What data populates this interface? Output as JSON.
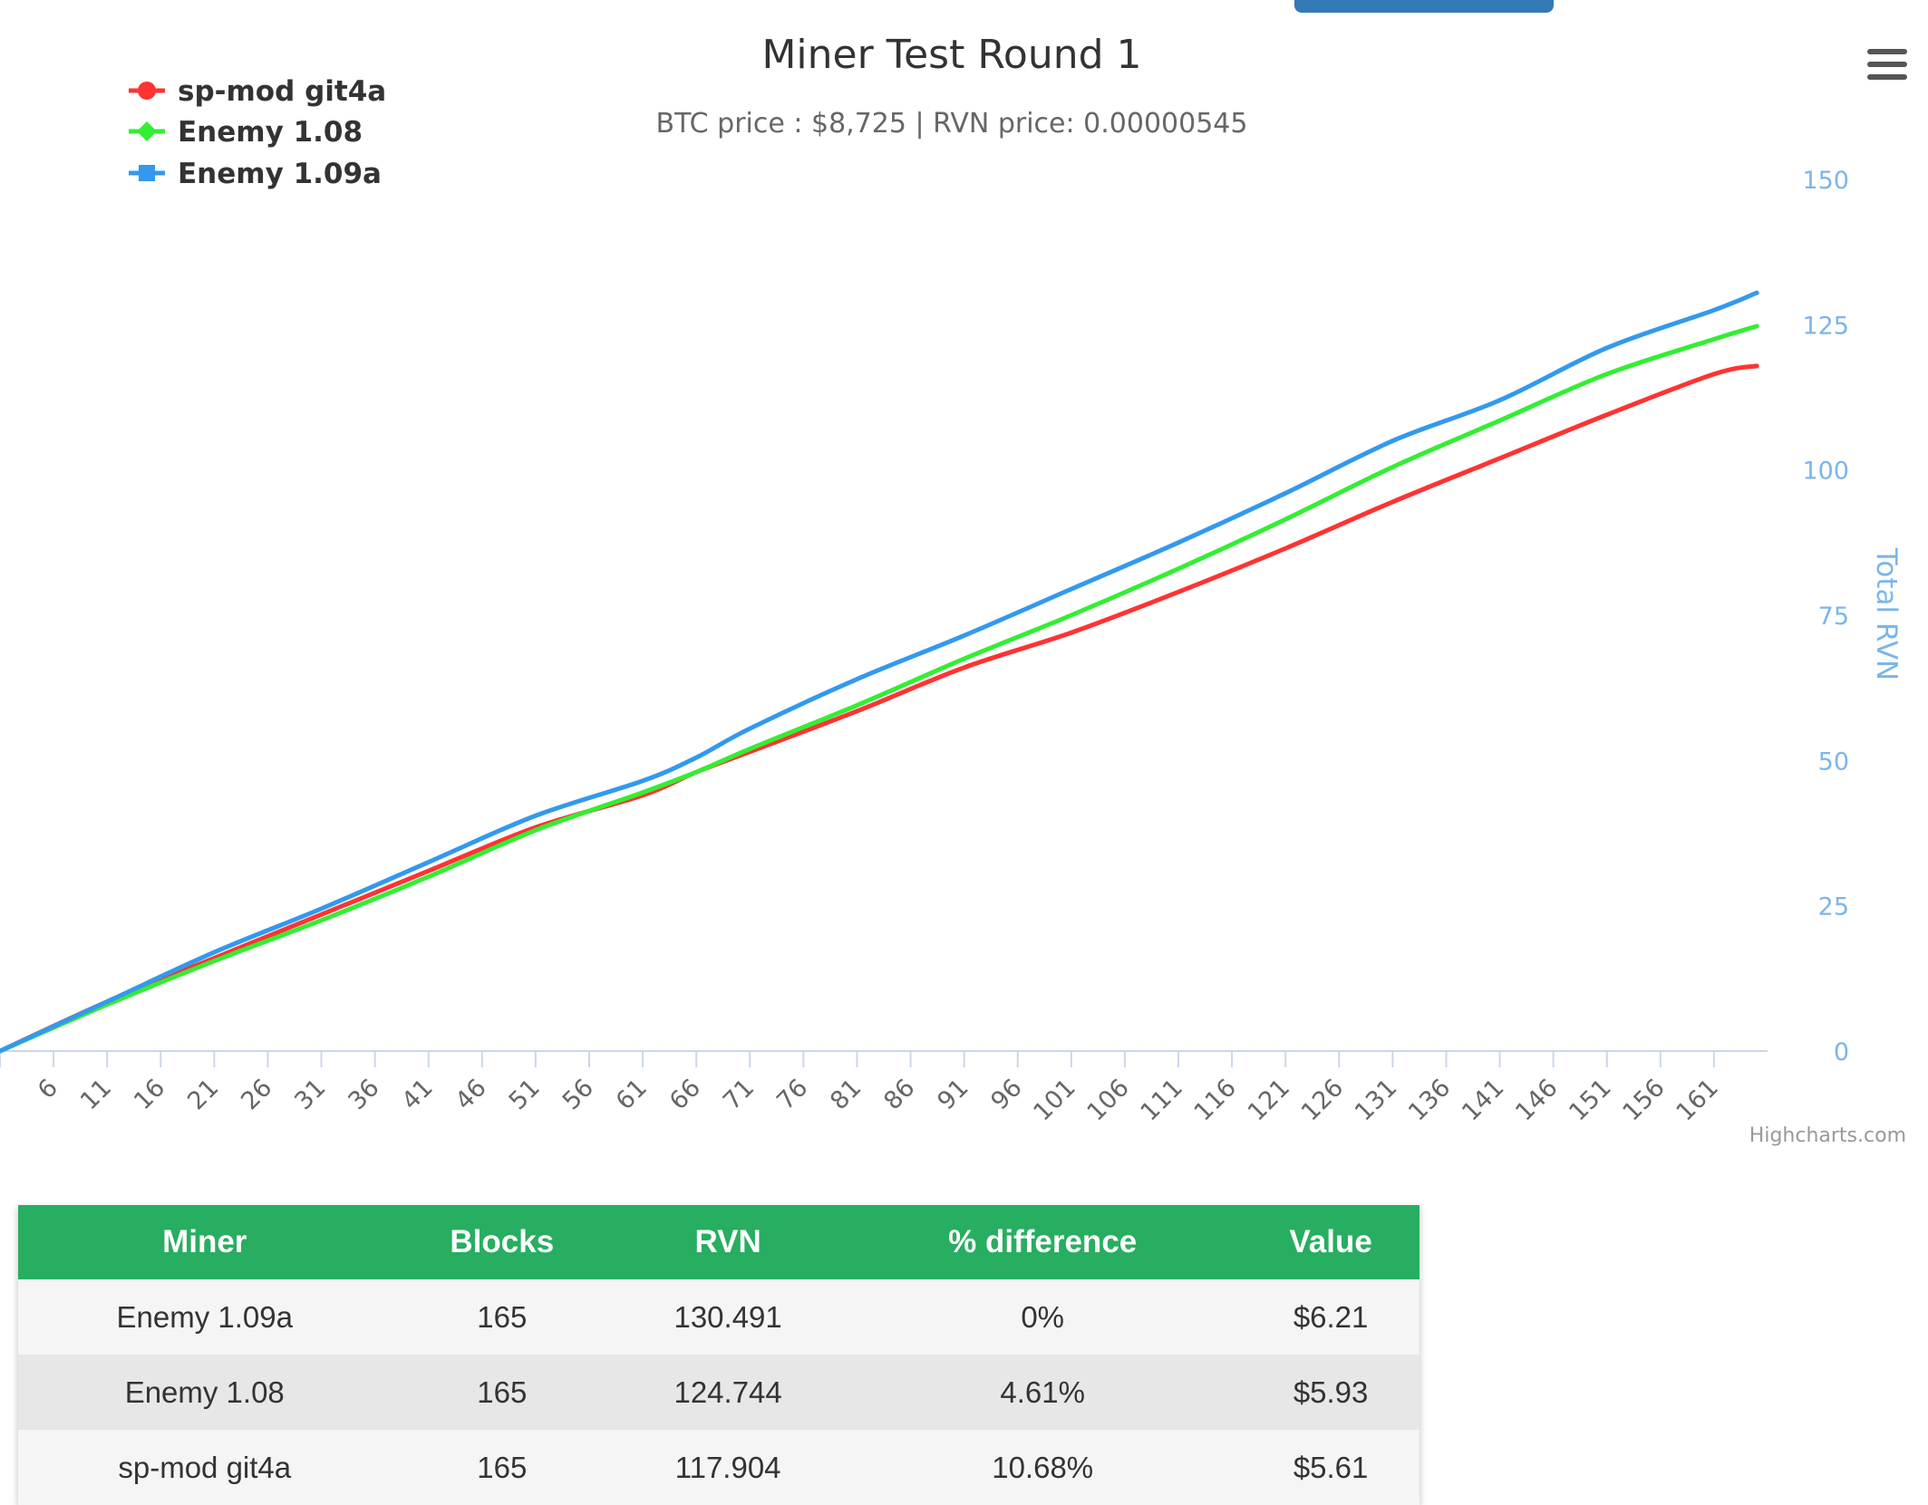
{
  "chart_data": {
    "type": "line",
    "title": "Miner Test Round 1",
    "subtitle": "BTC price : $8,725 | RVN price: 0.00000545",
    "ylabel": "Total RVN",
    "ylim": [
      0,
      150
    ],
    "yticks": [
      0,
      25,
      50,
      75,
      100,
      125,
      150
    ],
    "xlim": [
      1,
      166
    ],
    "xticks": [
      6,
      11,
      16,
      21,
      26,
      31,
      36,
      41,
      46,
      51,
      56,
      61,
      66,
      71,
      76,
      81,
      86,
      91,
      96,
      101,
      106,
      111,
      116,
      121,
      126,
      131,
      136,
      141,
      146,
      151,
      156,
      161
    ],
    "legend_position": "top-left",
    "x": [
      1,
      11,
      21,
      31,
      41,
      51,
      61,
      66,
      71,
      81,
      91,
      101,
      111,
      121,
      131,
      141,
      151,
      161,
      165
    ],
    "series": [
      {
        "name": "sp-mod git4a",
        "color": "#ff3333",
        "marker": "circle",
        "values": [
          0,
          8.5,
          16,
          23.5,
          31,
          38.5,
          44,
          48,
          51.5,
          58.5,
          66,
          72,
          79,
          86.5,
          94.5,
          102,
          109.5,
          116.5,
          117.9
        ]
      },
      {
        "name": "Enemy 1.08",
        "color": "#33ee33",
        "marker": "diamond",
        "values": [
          0,
          8,
          15.5,
          22.5,
          30,
          38,
          44.5,
          48,
          52,
          59.5,
          67.5,
          75,
          83,
          91.5,
          100.5,
          108.5,
          116.5,
          122.5,
          124.744
        ]
      },
      {
        "name": "Enemy 1.09a",
        "color": "#3399ee",
        "marker": "square",
        "values": [
          0,
          8.5,
          17,
          24.5,
          32.5,
          40.5,
          46.5,
          50.5,
          55.5,
          64,
          71.5,
          79.5,
          87.5,
          96,
          105,
          112,
          121,
          127.5,
          130.491
        ]
      }
    ]
  },
  "credits": "Highcharts.com",
  "table": {
    "headers": [
      "Miner",
      "Blocks",
      "RVN",
      "% difference",
      "Value"
    ],
    "rows": [
      [
        "Enemy 1.09a",
        "165",
        "130.491",
        "0%",
        "$6.21"
      ],
      [
        "Enemy 1.08",
        "165",
        "124.744",
        "4.61%",
        "$5.93"
      ],
      [
        "sp-mod git4a",
        "165",
        "117.904",
        "10.68%",
        "$5.61"
      ]
    ]
  },
  "menu_icon": "hamburger-menu-icon"
}
